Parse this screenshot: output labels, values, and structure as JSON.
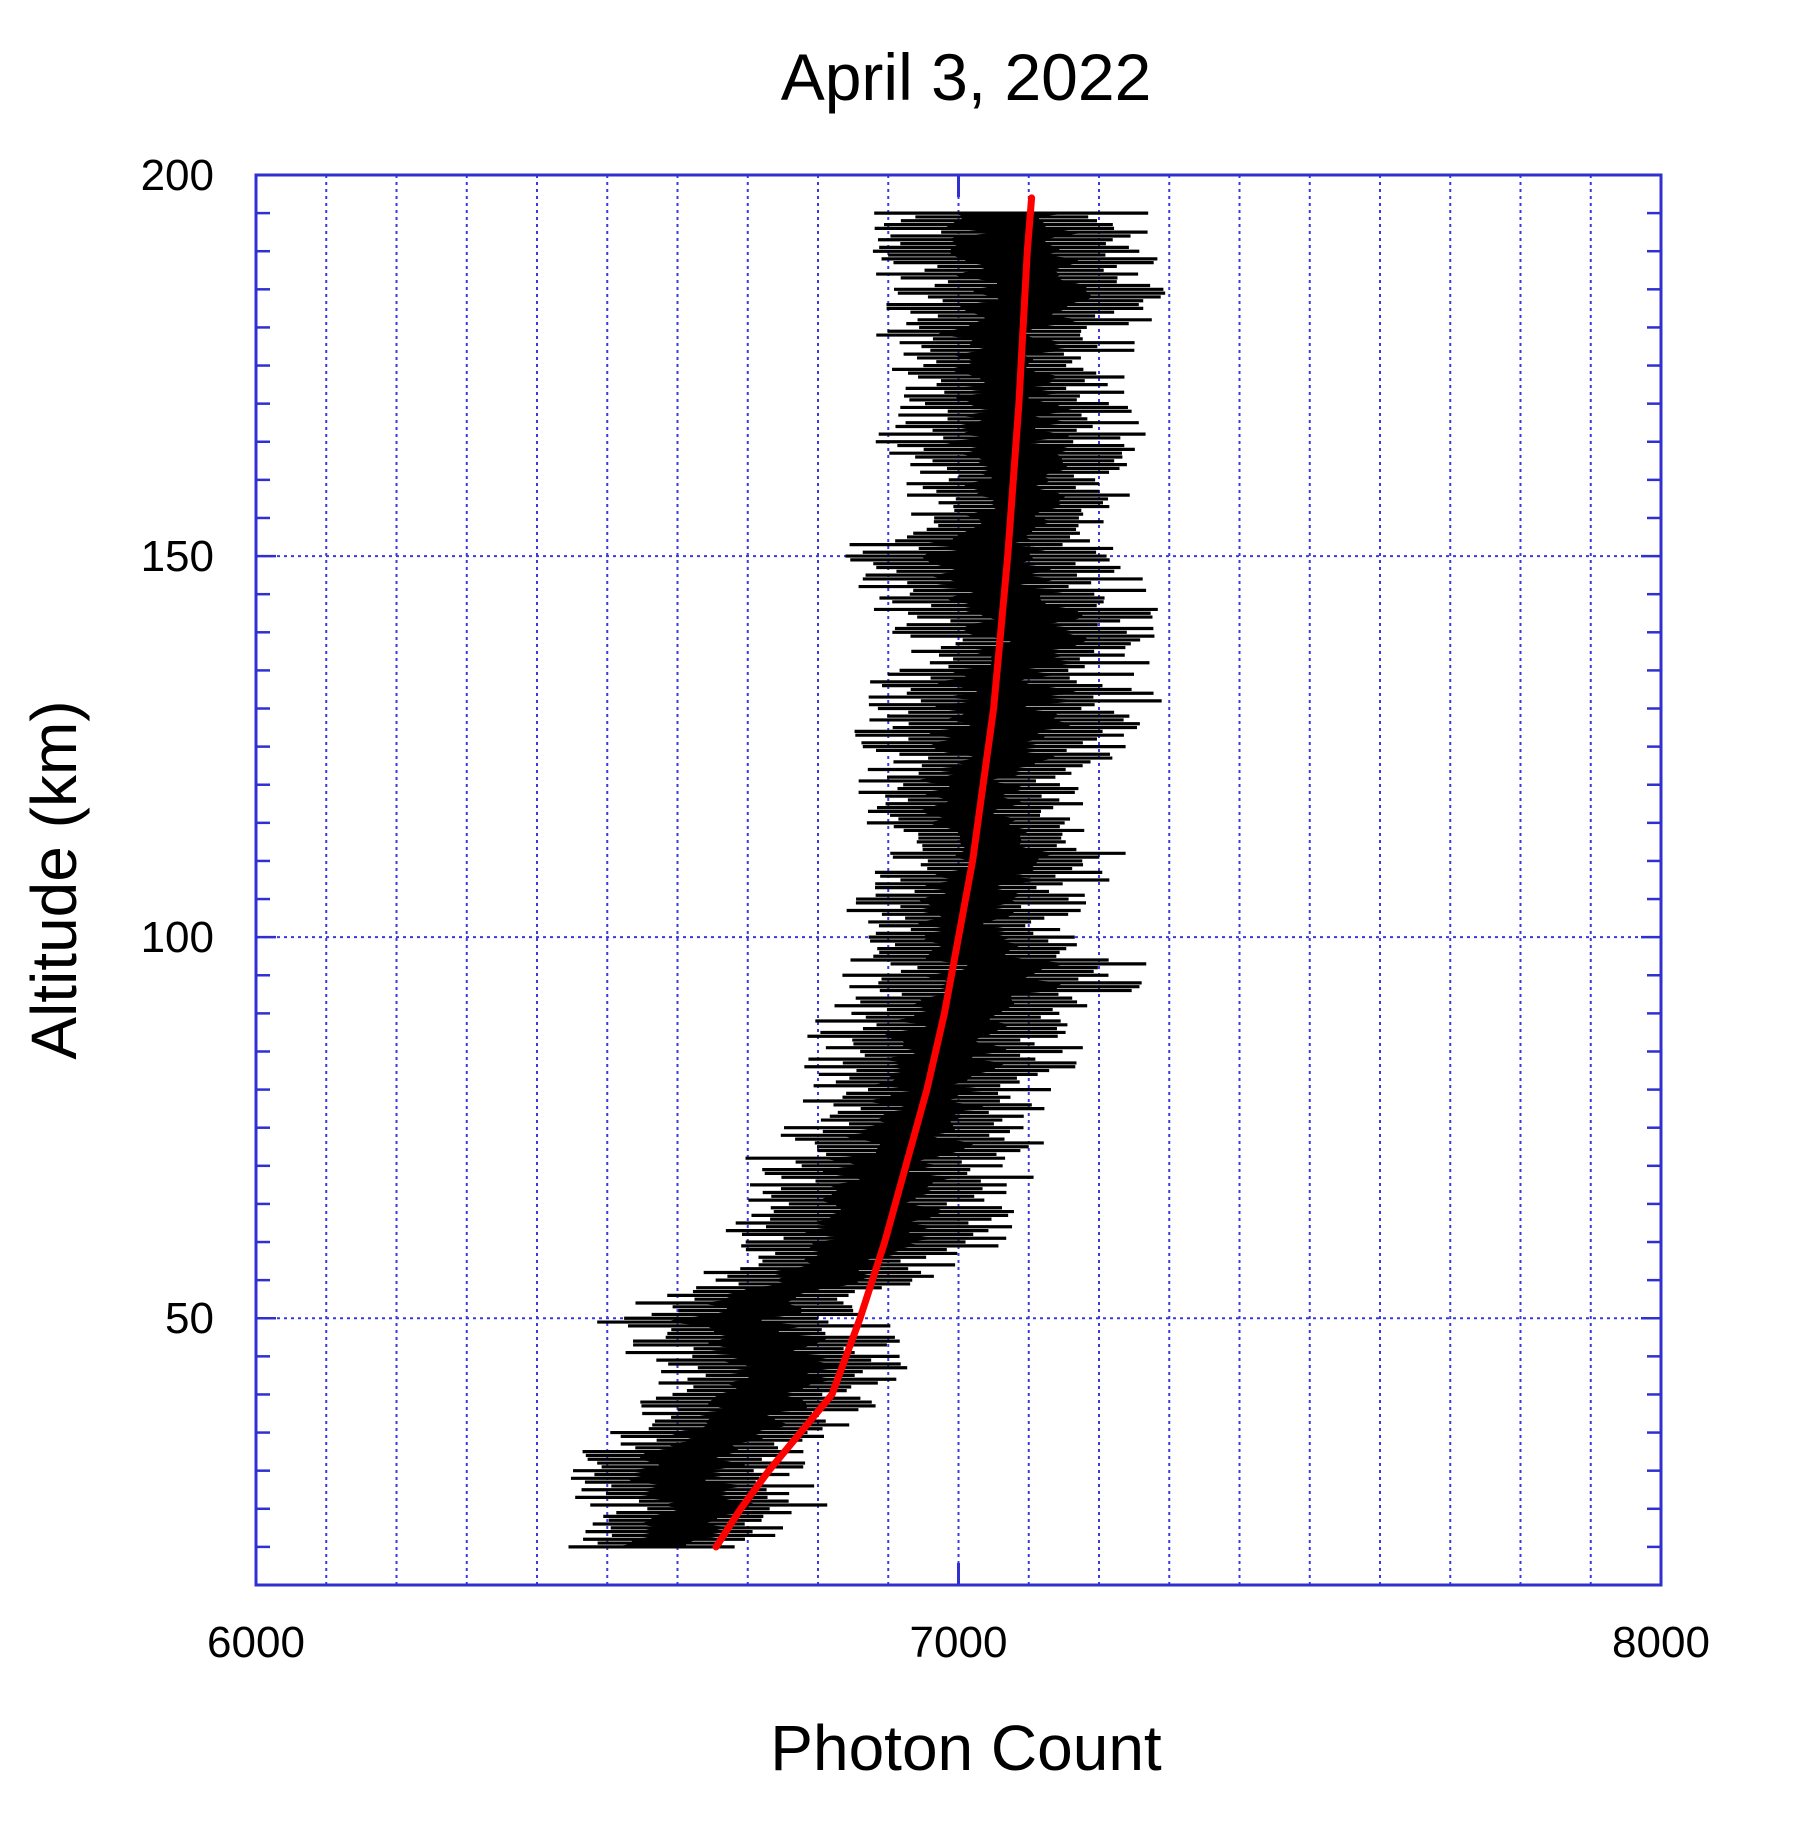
{
  "chart_data": {
    "type": "line",
    "title": "April 3, 2022",
    "xlabel": "Photon Count",
    "ylabel": "Altitude (km)",
    "xlim": [
      6000,
      8000
    ],
    "ylim": [
      15,
      200
    ],
    "x_ticks": [
      6000,
      7000,
      8000
    ],
    "y_ticks": [
      50,
      100,
      150,
      200
    ],
    "x_minor_step": 100,
    "y_minor_step": 5,
    "grid": true,
    "colors": {
      "axis": "#3030d0",
      "grid": "#3a3ae0",
      "data": "#000000",
      "fit": "#ff0000"
    },
    "series": [
      {
        "kind": "measured",
        "line_color": "#000000",
        "points": [
          {
            "alt": 20,
            "lo": 6400,
            "hi": 6720
          },
          {
            "alt": 25,
            "lo": 6480,
            "hi": 6820
          },
          {
            "alt": 30,
            "lo": 6380,
            "hi": 6780
          },
          {
            "alt": 35,
            "lo": 6500,
            "hi": 6850
          },
          {
            "alt": 40,
            "lo": 6550,
            "hi": 6900
          },
          {
            "alt": 45,
            "lo": 6520,
            "hi": 6940
          },
          {
            "alt": 50,
            "lo": 6460,
            "hi": 6920
          },
          {
            "alt": 55,
            "lo": 6600,
            "hi": 6960
          },
          {
            "alt": 60,
            "lo": 6640,
            "hi": 7080
          },
          {
            "alt": 65,
            "lo": 6700,
            "hi": 7080
          },
          {
            "alt": 70,
            "lo": 6680,
            "hi": 7120
          },
          {
            "alt": 75,
            "lo": 6740,
            "hi": 7140
          },
          {
            "alt": 80,
            "lo": 6780,
            "hi": 7160
          },
          {
            "alt": 85,
            "lo": 6760,
            "hi": 7180
          },
          {
            "alt": 90,
            "lo": 6800,
            "hi": 7190
          },
          {
            "alt": 95,
            "lo": 6820,
            "hi": 7300
          },
          {
            "alt": 100,
            "lo": 6830,
            "hi": 7200
          },
          {
            "alt": 105,
            "lo": 6840,
            "hi": 7180
          },
          {
            "alt": 110,
            "lo": 6850,
            "hi": 7260
          },
          {
            "alt": 115,
            "lo": 6860,
            "hi": 7180
          },
          {
            "alt": 120,
            "lo": 6830,
            "hi": 7200
          },
          {
            "alt": 125,
            "lo": 6860,
            "hi": 7260
          },
          {
            "alt": 130,
            "lo": 6800,
            "hi": 7300
          },
          {
            "alt": 135,
            "lo": 6880,
            "hi": 7260
          },
          {
            "alt": 140,
            "lo": 6900,
            "hi": 7320
          },
          {
            "alt": 145,
            "lo": 6860,
            "hi": 7280
          },
          {
            "alt": 150,
            "lo": 6820,
            "hi": 7240
          },
          {
            "alt": 155,
            "lo": 6900,
            "hi": 7260
          },
          {
            "alt": 160,
            "lo": 6920,
            "hi": 7240
          },
          {
            "alt": 165,
            "lo": 6880,
            "hi": 7270
          },
          {
            "alt": 170,
            "lo": 6900,
            "hi": 7260
          },
          {
            "alt": 175,
            "lo": 6880,
            "hi": 7240
          },
          {
            "alt": 180,
            "lo": 6880,
            "hi": 7280
          },
          {
            "alt": 185,
            "lo": 6870,
            "hi": 7300
          },
          {
            "alt": 190,
            "lo": 6860,
            "hi": 7320
          },
          {
            "alt": 195,
            "lo": 6880,
            "hi": 7270
          }
        ]
      },
      {
        "kind": "fit",
        "line_color": "#ff0000",
        "x": [
          6655,
          6690,
          6730,
          6775,
          6820,
          6860,
          6895,
          6925,
          6955,
          6980,
          7000,
          7020,
          7035,
          7050,
          7060,
          7070,
          7078,
          7086,
          7092,
          7098,
          7104
        ],
        "y": [
          20,
          25,
          30,
          35,
          40,
          50,
          60,
          70,
          80,
          90,
          100,
          110,
          120,
          130,
          140,
          150,
          160,
          170,
          180,
          190,
          197
        ]
      }
    ]
  }
}
